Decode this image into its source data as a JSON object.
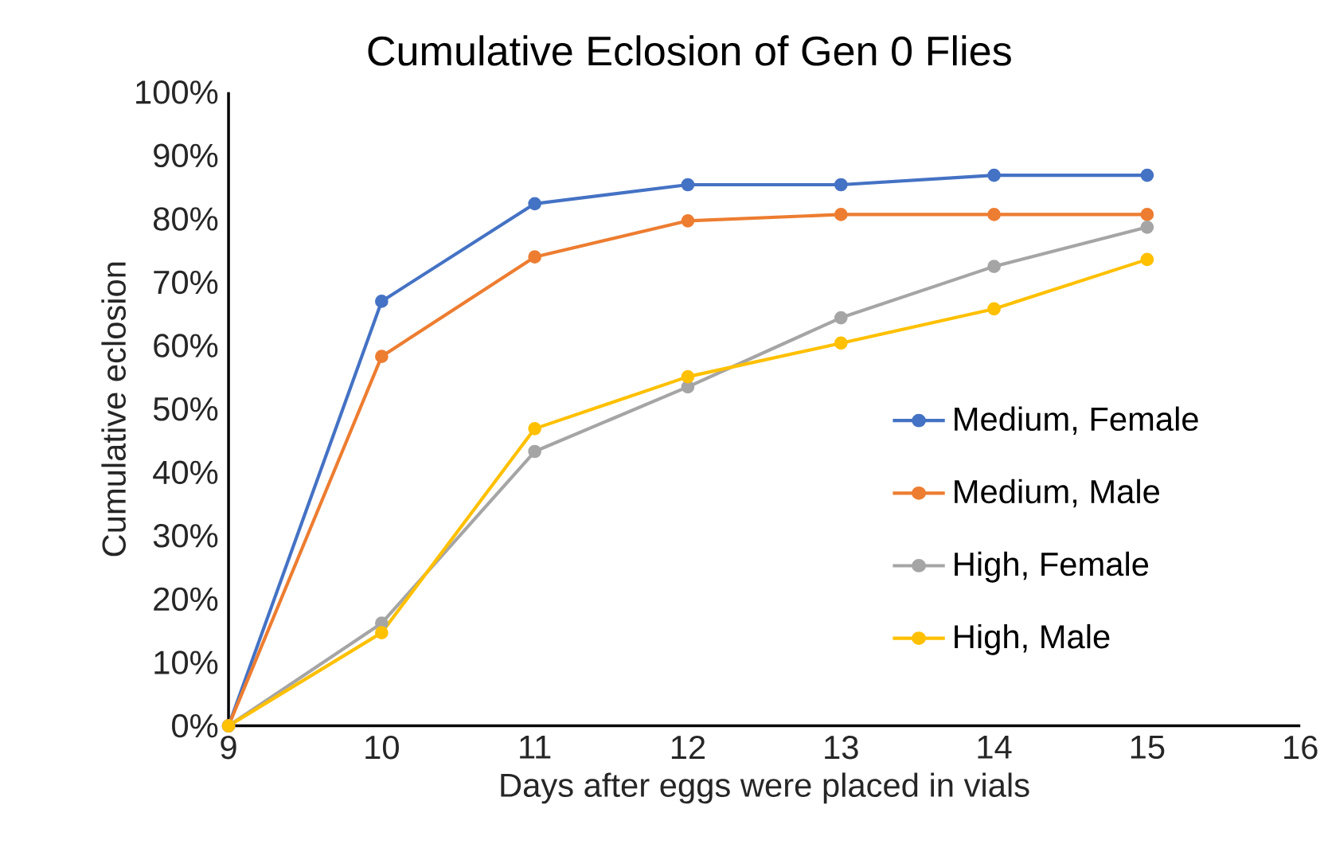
{
  "chart_data": {
    "type": "line",
    "title": "Cumulative Eclosion of Gen 0 Flies",
    "xlabel": "Days after eggs were placed in vials",
    "ylabel": "Cumulative eclosion",
    "x": [
      9,
      10,
      11,
      12,
      13,
      14,
      15
    ],
    "series": [
      {
        "name": "Medium, Female",
        "color": "#4472c4",
        "values": [
          0,
          67,
          82.4,
          85.4,
          85.4,
          86.9,
          86.9
        ]
      },
      {
        "name": "Medium, Male",
        "color": "#ed7d31",
        "values": [
          0,
          58.3,
          74,
          79.7,
          80.7,
          80.7,
          80.7
        ]
      },
      {
        "name": "High, Female",
        "color": "#a5a5a5",
        "values": [
          0,
          16.2,
          43.3,
          53.5,
          64.4,
          72.5,
          78.7
        ]
      },
      {
        "name": "High, Male",
        "color": "#ffc000",
        "values": [
          0,
          14.7,
          46.9,
          55.1,
          60.4,
          65.8,
          73.6
        ]
      }
    ],
    "xlim": [
      9,
      16
    ],
    "xticks": [
      9,
      10,
      11,
      12,
      13,
      14,
      15,
      16
    ],
    "ylim": [
      0,
      100
    ],
    "yticks": [
      {
        "value": 0,
        "label": "0%"
      },
      {
        "value": 10,
        "label": "10%"
      },
      {
        "value": 20,
        "label": "20%"
      },
      {
        "value": 30,
        "label": "30%"
      },
      {
        "value": 40,
        "label": "40%"
      },
      {
        "value": 50,
        "label": "50%"
      },
      {
        "value": 60,
        "label": "60%"
      },
      {
        "value": 70,
        "label": "70%"
      },
      {
        "value": 80,
        "label": "80%"
      },
      {
        "value": 90,
        "label": "90%"
      },
      {
        "value": 100,
        "label": "100%"
      }
    ],
    "legend": "right",
    "marker": "circle",
    "line_style": "solid",
    "grid": false
  }
}
